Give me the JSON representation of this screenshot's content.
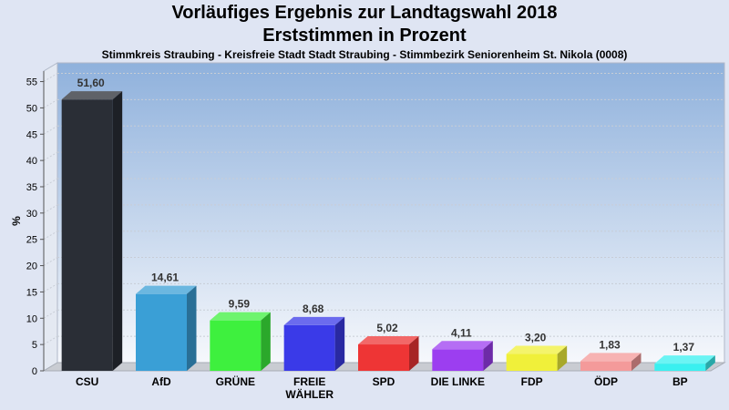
{
  "chart_data": {
    "type": "bar",
    "title": "Vorläufiges Ergebnis zur Landtagswahl 2018",
    "subtitle": "Erststimmen in Prozent",
    "subtitle2": "Stimmkreis Straubing - Kreisfreie Stadt Stadt Straubing - Stimmbezirk Seniorenheim St. Nikola (0008)",
    "ylabel": "%",
    "xlabel": "",
    "ylim": [
      0,
      57
    ],
    "yticks": [
      0,
      5,
      10,
      15,
      20,
      25,
      30,
      35,
      40,
      45,
      50,
      55
    ],
    "grid": true,
    "categories": [
      "CSU",
      "AfD",
      "GRÜNE",
      "FREIE WÄHLER",
      "SPD",
      "DIE LINKE",
      "FDP",
      "ÖDP",
      "BP"
    ],
    "category_lines": [
      [
        "CSU"
      ],
      [
        "AfD"
      ],
      [
        "GRÜNE"
      ],
      [
        "FREIE",
        "WÄHLER"
      ],
      [
        "SPD"
      ],
      [
        "DIE LINKE"
      ],
      [
        "FDP"
      ],
      [
        "ÖDP"
      ],
      [
        "BP"
      ]
    ],
    "values": [
      51.6,
      14.61,
      9.59,
      8.68,
      5.02,
      4.11,
      3.2,
      1.83,
      1.37
    ],
    "value_labels": [
      "51,60",
      "14,61",
      "9,59",
      "8,68",
      "5,02",
      "4,11",
      "3,20",
      "1,83",
      "1,37"
    ],
    "colors": [
      "#2a2e36",
      "#3a9fd6",
      "#3ef03e",
      "#3a3ae8",
      "#ee3535",
      "#9c3ef0",
      "#f0f03a",
      "#f49a9a",
      "#3af0f0"
    ]
  }
}
